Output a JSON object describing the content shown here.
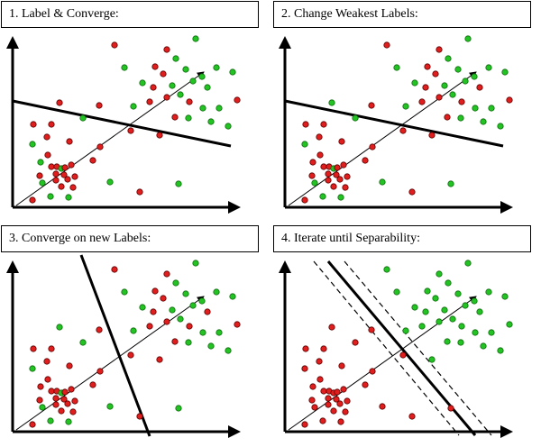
{
  "colors": {
    "green": "#22c322",
    "red": "#e01e1e",
    "outline": "#5a0000",
    "ink": "#000000"
  },
  "panels": [
    {
      "title": "1. Label & Converge:"
    },
    {
      "title": "2. Change Weakest Labels:"
    },
    {
      "title": "3. Converge on new Labels:"
    },
    {
      "title": "4. Iterate until Separability:"
    }
  ]
}
